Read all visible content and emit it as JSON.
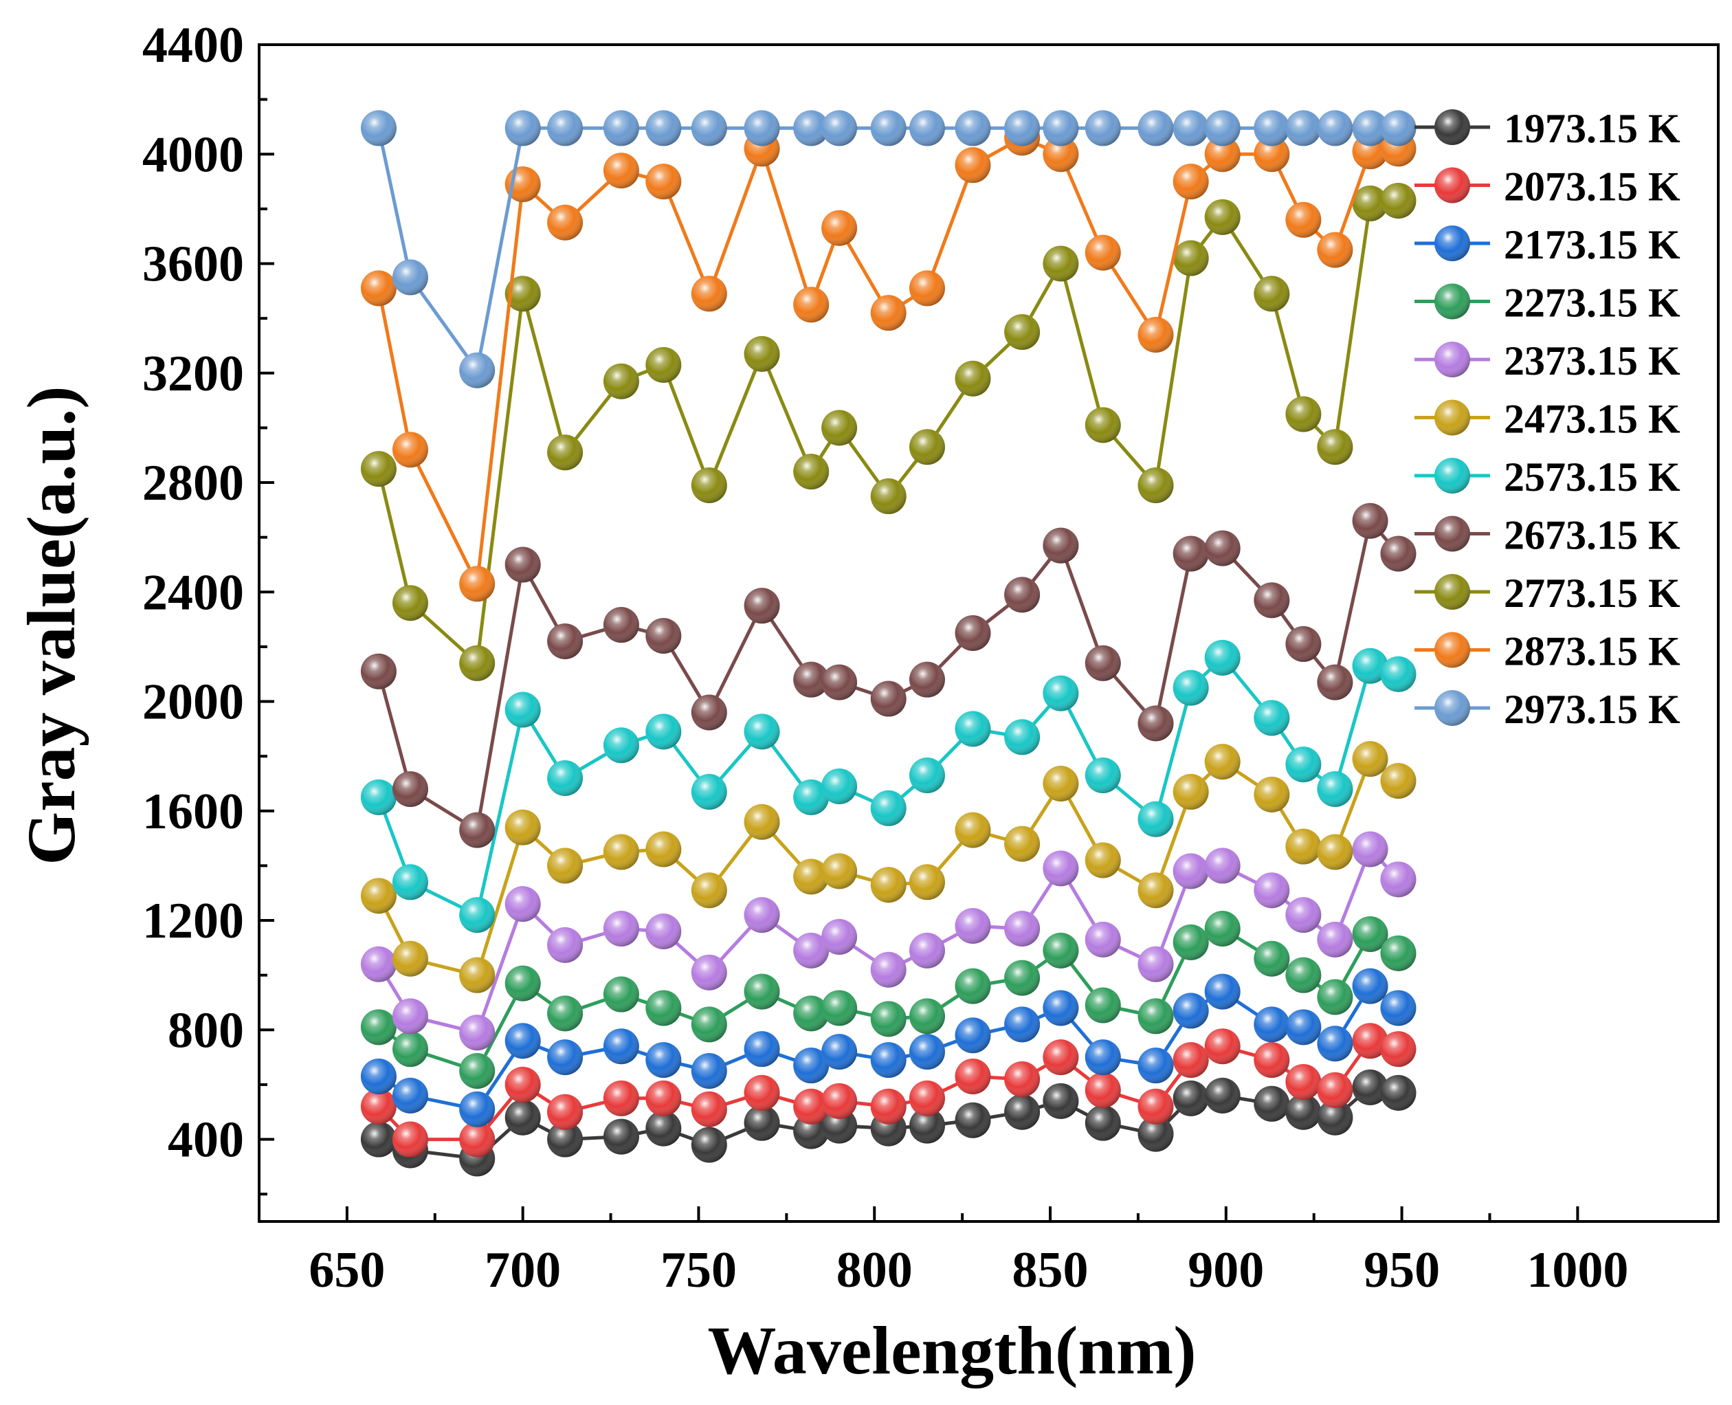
{
  "chart_data": {
    "type": "line",
    "title": "",
    "xlabel": "Wavelength(nm)",
    "ylabel": "Gray value(a.u.)",
    "xlim": [
      625,
      1040
    ],
    "ylim": [
      100,
      4400
    ],
    "xticks": [
      650,
      700,
      750,
      800,
      850,
      900,
      950,
      1000
    ],
    "yticks": [
      400,
      800,
      1200,
      1600,
      2000,
      2400,
      2800,
      3200,
      3600,
      4000,
      4400
    ],
    "legend_position": "top-right",
    "x": [
      659,
      668,
      687,
      700,
      712,
      728,
      740,
      753,
      768,
      782,
      790,
      804,
      815,
      828,
      842,
      853,
      865,
      880,
      890,
      899,
      913,
      922,
      931,
      941,
      949
    ],
    "series": [
      {
        "name": "1973.15 K",
        "color": "#3a3a3a",
        "values": [
          400,
          360,
          330,
          480,
          400,
          410,
          440,
          380,
          460,
          430,
          450,
          440,
          450,
          470,
          500,
          540,
          460,
          420,
          550,
          560,
          530,
          500,
          480,
          590,
          570
        ]
      },
      {
        "name": "2073.15 K",
        "color": "#e83a3a",
        "values": [
          520,
          400,
          400,
          600,
          500,
          550,
          550,
          510,
          570,
          520,
          540,
          520,
          550,
          630,
          620,
          700,
          580,
          520,
          690,
          740,
          690,
          610,
          580,
          760,
          730
        ]
      },
      {
        "name": "2173.15 K",
        "color": "#1f6fd6",
        "values": [
          630,
          560,
          510,
          760,
          700,
          740,
          690,
          650,
          730,
          670,
          720,
          690,
          720,
          780,
          820,
          880,
          700,
          670,
          870,
          940,
          820,
          810,
          750,
          960,
          880
        ]
      },
      {
        "name": "2273.15 K",
        "color": "#2e9e5b",
        "values": [
          810,
          730,
          650,
          970,
          860,
          930,
          880,
          820,
          940,
          860,
          880,
          840,
          850,
          960,
          990,
          1090,
          890,
          850,
          1120,
          1170,
          1060,
          1000,
          920,
          1150,
          1080
        ]
      },
      {
        "name": "2373.15 K",
        "color": "#b57ce0",
        "values": [
          1040,
          850,
          790,
          1260,
          1110,
          1170,
          1160,
          1010,
          1220,
          1090,
          1140,
          1020,
          1090,
          1180,
          1170,
          1390,
          1130,
          1040,
          1380,
          1400,
          1310,
          1220,
          1130,
          1460,
          1350
        ]
      },
      {
        "name": "2473.15 K",
        "color": "#c9a21a",
        "values": [
          1290,
          1060,
          1000,
          1540,
          1400,
          1450,
          1460,
          1310,
          1560,
          1360,
          1380,
          1330,
          1340,
          1530,
          1480,
          1700,
          1420,
          1310,
          1670,
          1780,
          1660,
          1470,
          1450,
          1790,
          1710
        ]
      },
      {
        "name": "2573.15 K",
        "color": "#19c6c6",
        "values": [
          1650,
          1340,
          1220,
          1970,
          1720,
          1840,
          1890,
          1670,
          1890,
          1650,
          1690,
          1610,
          1730,
          1900,
          1870,
          2030,
          1730,
          1570,
          2050,
          2160,
          1940,
          1770,
          1680,
          2130,
          2100
        ]
      },
      {
        "name": "2673.15 K",
        "color": "#7a4a4a",
        "values": [
          2110,
          1680,
          1530,
          2500,
          2220,
          2280,
          2240,
          1960,
          2350,
          2080,
          2070,
          2010,
          2080,
          2250,
          2390,
          2570,
          2140,
          1920,
          2540,
          2560,
          2370,
          2210,
          2070,
          2660,
          2540
        ]
      },
      {
        "name": "2773.15 K",
        "color": "#8a8a12",
        "values": [
          2850,
          2360,
          2140,
          3490,
          2910,
          3170,
          3230,
          2790,
          3270,
          2840,
          3000,
          2750,
          2930,
          3180,
          3350,
          3600,
          3010,
          2790,
          3620,
          3770,
          3490,
          3050,
          2930,
          3820,
          3830
        ]
      },
      {
        "name": "2873.15 K",
        "color": "#f07a1a",
        "values": [
          3510,
          2920,
          2430,
          3890,
          3750,
          3940,
          3900,
          3490,
          4020,
          3450,
          3730,
          3420,
          3510,
          3960,
          4060,
          4000,
          3640,
          3340,
          3900,
          4000,
          4000,
          3760,
          3650,
          4010,
          4020
        ]
      },
      {
        "name": "2973.15 K",
        "color": "#6b9bd1",
        "values": [
          4095,
          3550,
          3210,
          4095,
          4095,
          4095,
          4095,
          4095,
          4095,
          4095,
          4095,
          4095,
          4095,
          4095,
          4095,
          4095,
          4095,
          4095,
          4095,
          4095,
          4095,
          4095,
          4095,
          4095,
          4095
        ]
      }
    ]
  }
}
